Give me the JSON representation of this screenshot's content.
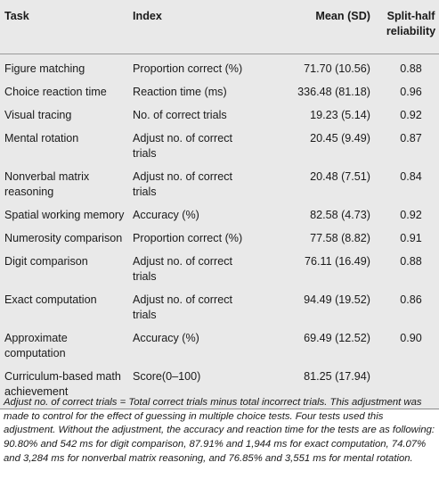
{
  "table": {
    "headers": {
      "task": "Task",
      "index": "Index",
      "mean": "Mean (SD)",
      "reliability": "Split-half reliability"
    },
    "rows": [
      {
        "task": "Figure matching",
        "index": "Proportion correct (%)",
        "mean": "71.70 (10.56)",
        "reliability": "0.88"
      },
      {
        "task": "Choice reaction time",
        "index": "Reaction time (ms)",
        "mean": "336.48 (81.18)",
        "reliability": "0.96"
      },
      {
        "task": "Visual tracing",
        "index": "No. of correct trials",
        "mean": "19.23 (5.14)",
        "reliability": "0.92"
      },
      {
        "task": "Mental rotation",
        "index": "Adjust no. of correct trials",
        "mean": "20.45 (9.49)",
        "reliability": "0.87"
      },
      {
        "task": "Nonverbal matrix reasoning",
        "index": "Adjust no. of correct trials",
        "mean": "20.48 (7.51)",
        "reliability": "0.84"
      },
      {
        "task": "Spatial working memory",
        "index": "Accuracy (%)",
        "mean": "82.58 (4.73)",
        "reliability": "0.92"
      },
      {
        "task": "Numerosity comparison",
        "index": "Proportion correct (%)",
        "mean": "77.58 (8.82)",
        "reliability": "0.91"
      },
      {
        "task": "Digit comparison",
        "index": "Adjust no. of correct trials",
        "mean": "76.11 (16.49)",
        "reliability": "0.88"
      },
      {
        "task": "Exact computation",
        "index": "Adjust no. of correct trials",
        "mean": "94.49 (19.52)",
        "reliability": "0.86"
      },
      {
        "task": "Approximate computation",
        "index": "Accuracy (%)",
        "mean": "69.49 (12.52)",
        "reliability": "0.90"
      },
      {
        "task": "Curriculum-based math achievement",
        "index": "Score(0–100)",
        "mean": "81.25 (17.94)",
        "reliability": ""
      }
    ]
  },
  "footnote": "Adjust no. of correct trials = Total correct trials minus total incorrect trials. This adjustment was made to control for the effect of guessing in multiple choice tests. Four tests used this adjustment. Without the adjustment, the accuracy and reaction time for the tests are as following: 90.80% and 542 ms for digit comparison, 87.91% and 1,944 ms for exact computation, 74.07% and 3,284 ms for nonverbal matrix reasoning, and 76.85% and 3,551 ms for mental rotation."
}
